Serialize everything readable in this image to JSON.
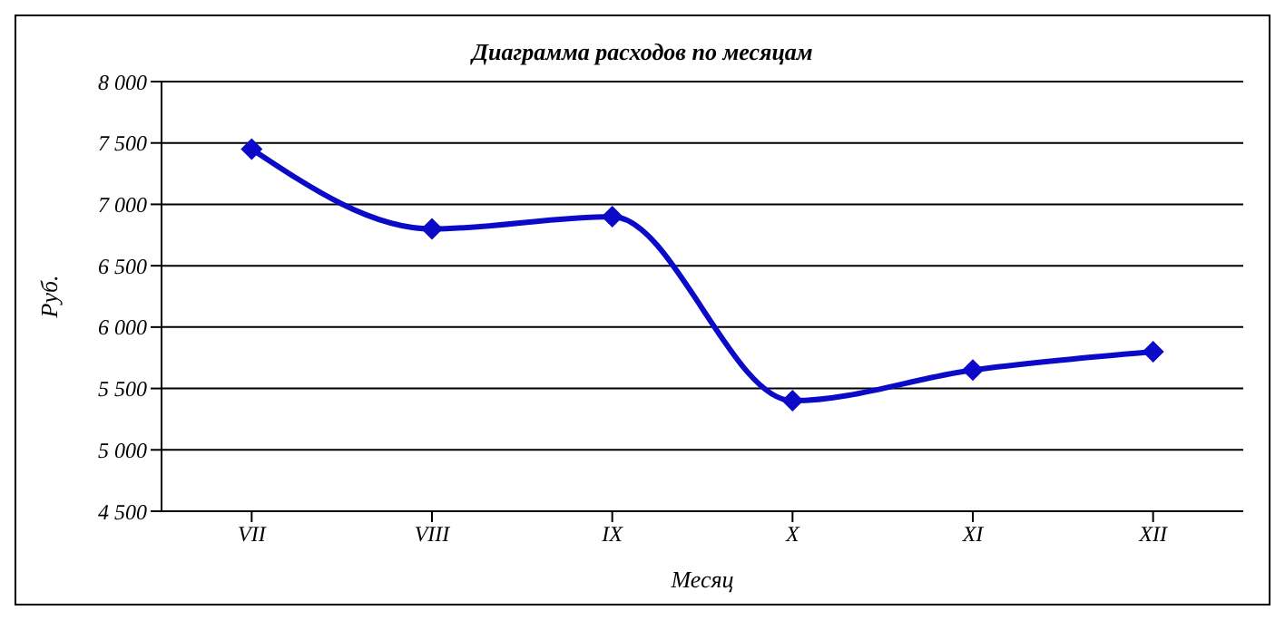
{
  "chart_data": {
    "type": "line",
    "title": "Диаграмма расходов по месяцам",
    "xlabel": "Месяц",
    "ylabel": "Руб.",
    "categories": [
      "VII",
      "VIII",
      "IX",
      "X",
      "XI",
      "XII"
    ],
    "series": [
      {
        "color": "#0a0ac8",
        "values": [
          7450,
          6800,
          6900,
          5400,
          5650,
          5800
        ]
      }
    ],
    "ylim": [
      4500,
      8000
    ],
    "yticks": [
      {
        "value": 4500,
        "label": "4 500"
      },
      {
        "value": 5000,
        "label": "5 000"
      },
      {
        "value": 5500,
        "label": "5 500"
      },
      {
        "value": 6000,
        "label": "6 000"
      },
      {
        "value": 6500,
        "label": "6 500"
      },
      {
        "value": 7000,
        "label": "7 000"
      },
      {
        "value": 7500,
        "label": "7 500"
      },
      {
        "value": 8000,
        "label": "8 000"
      }
    ],
    "grid": "y",
    "marker": "diamond",
    "line_style": "solid"
  }
}
